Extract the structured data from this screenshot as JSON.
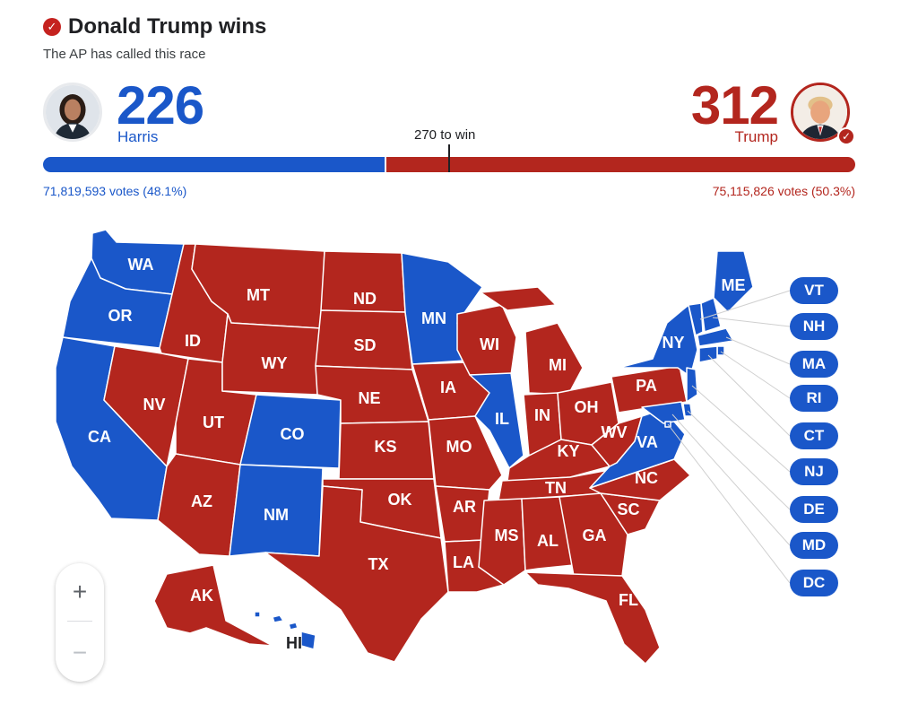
{
  "header": {
    "title": "Donald Trump wins",
    "subtitle": "The AP has called this race"
  },
  "candidates": {
    "harris": {
      "name": "Harris",
      "electoral_votes": "226",
      "votes_text": "71,819,593 votes (48.1%)",
      "color": "#1a57c9"
    },
    "trump": {
      "name": "Trump",
      "electoral_votes": "312",
      "votes_text": "75,115,826 votes (50.3%)",
      "color": "#b3261e",
      "winner": true
    }
  },
  "threshold": {
    "label": "270 to win",
    "value": 270,
    "total": 538
  },
  "map": {
    "dem_color": "#1a57c9",
    "rep_color": "#b3261e",
    "states": [
      {
        "abbr": "WA",
        "party": "D"
      },
      {
        "abbr": "OR",
        "party": "D"
      },
      {
        "abbr": "CA",
        "party": "D"
      },
      {
        "abbr": "ID",
        "party": "R"
      },
      {
        "abbr": "NV",
        "party": "R"
      },
      {
        "abbr": "UT",
        "party": "R"
      },
      {
        "abbr": "AZ",
        "party": "R"
      },
      {
        "abbr": "MT",
        "party": "R"
      },
      {
        "abbr": "WY",
        "party": "R"
      },
      {
        "abbr": "CO",
        "party": "D"
      },
      {
        "abbr": "NM",
        "party": "D"
      },
      {
        "abbr": "ND",
        "party": "R"
      },
      {
        "abbr": "SD",
        "party": "R"
      },
      {
        "abbr": "NE",
        "party": "R"
      },
      {
        "abbr": "KS",
        "party": "R"
      },
      {
        "abbr": "OK",
        "party": "R"
      },
      {
        "abbr": "TX",
        "party": "R"
      },
      {
        "abbr": "MN",
        "party": "D"
      },
      {
        "abbr": "IA",
        "party": "R"
      },
      {
        "abbr": "MO",
        "party": "R"
      },
      {
        "abbr": "AR",
        "party": "R"
      },
      {
        "abbr": "LA",
        "party": "R"
      },
      {
        "abbr": "WI",
        "party": "R"
      },
      {
        "abbr": "IL",
        "party": "D"
      },
      {
        "abbr": "MS",
        "party": "R"
      },
      {
        "abbr": "MI",
        "party": "R"
      },
      {
        "abbr": "IN",
        "party": "R"
      },
      {
        "abbr": "KY",
        "party": "R"
      },
      {
        "abbr": "TN",
        "party": "R"
      },
      {
        "abbr": "AL",
        "party": "R"
      },
      {
        "abbr": "OH",
        "party": "R"
      },
      {
        "abbr": "WV",
        "party": "R"
      },
      {
        "abbr": "GA",
        "party": "R"
      },
      {
        "abbr": "FL",
        "party": "R"
      },
      {
        "abbr": "SC",
        "party": "R"
      },
      {
        "abbr": "NC",
        "party": "R"
      },
      {
        "abbr": "VA",
        "party": "D"
      },
      {
        "abbr": "PA",
        "party": "R"
      },
      {
        "abbr": "NY",
        "party": "D"
      },
      {
        "abbr": "ME",
        "party": "D"
      },
      {
        "abbr": "AK",
        "party": "R"
      },
      {
        "abbr": "HI",
        "party": "D"
      }
    ],
    "small_states": [
      "VT",
      "NH",
      "MA",
      "RI",
      "CT",
      "NJ",
      "DE",
      "MD",
      "DC"
    ]
  },
  "zoom": {
    "in_label": "+",
    "out_label": "−"
  }
}
